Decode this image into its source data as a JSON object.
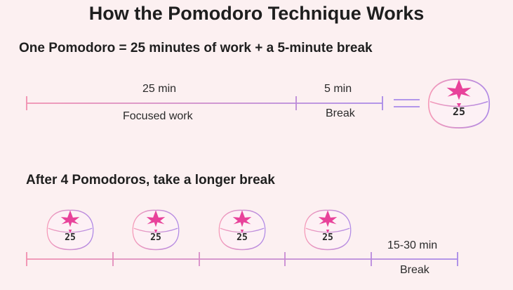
{
  "title": "How the Pomodoro Technique Works",
  "section1": {
    "heading": "One Pomodoro = 25 minutes of work + a 5-minute break",
    "work_duration": "25 min",
    "work_label": "Focused work",
    "break_duration": "5 min",
    "break_label": "Break",
    "timer_value": "25"
  },
  "section2": {
    "heading": "After 4 Pomodoros, take a longer break",
    "timers": [
      "25",
      "25",
      "25",
      "25"
    ],
    "long_break_duration": "15-30 min",
    "long_break_label": "Break"
  },
  "colors": {
    "background": "#fcf0f1",
    "line_start": "#f08fb0",
    "line_end": "#a889e8",
    "leaf": "#e8429a"
  }
}
